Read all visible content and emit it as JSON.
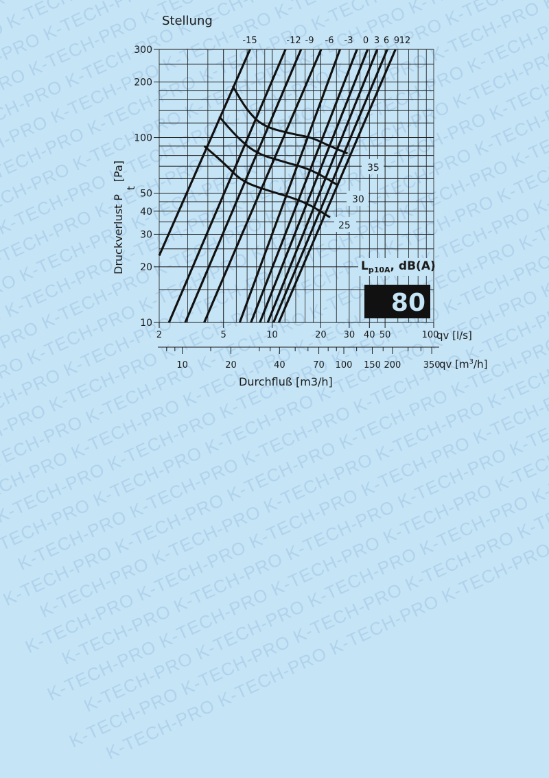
{
  "chart_data": {
    "type": "line",
    "title": "Stellung",
    "xlabel": "Durchfluß [m3/h]",
    "ylabel": "Druckverlust P t [Pa]",
    "x_scale": "log",
    "y_scale": "log",
    "xlim_ls": [
      2,
      100
    ],
    "ylim": [
      10,
      300
    ],
    "grid": true,
    "y_ticks": [
      "10",
      "20",
      "30",
      "40",
      "50",
      "100",
      "200",
      "300"
    ],
    "x_ticks_ls": [
      "2",
      "5",
      "10",
      "20",
      "30",
      "40",
      "50",
      "100"
    ],
    "x_axis_ls_label": "qv [l/s]",
    "x_ticks_m3h": [
      "10",
      "20",
      "40",
      "70",
      "100",
      "150",
      "200",
      "350"
    ],
    "x_axis_m3h_label": "qv [m³/h]",
    "stellung_labels": [
      "-15",
      "-12",
      "-9",
      "-6",
      "-3",
      "0",
      "3",
      "6",
      "9",
      "12"
    ],
    "series": [
      {
        "name": "-15",
        "points": [
          [
            2.0,
            23
          ],
          [
            7.3,
            300
          ]
        ]
      },
      {
        "name": "-12",
        "points": [
          [
            2.3,
            10
          ],
          [
            12.1,
            300
          ]
        ]
      },
      {
        "name": "-9",
        "points": [
          [
            2.9,
            10
          ],
          [
            15.1,
            300
          ]
        ]
      },
      {
        "name": "-6",
        "points": [
          [
            3.8,
            10
          ],
          [
            20.1,
            300
          ]
        ]
      },
      {
        "name": "-3",
        "points": [
          [
            6.3,
            10
          ],
          [
            26.3,
            300
          ]
        ]
      },
      {
        "name": "0",
        "points": [
          [
            7.4,
            10
          ],
          [
            33.5,
            300
          ]
        ]
      },
      {
        "name": "3",
        "points": [
          [
            8.4,
            10
          ],
          [
            39.0,
            300
          ]
        ]
      },
      {
        "name": "6",
        "points": [
          [
            9.4,
            10
          ],
          [
            44.7,
            300
          ]
        ]
      },
      {
        "name": "9",
        "points": [
          [
            10.2,
            10
          ],
          [
            51.6,
            300
          ]
        ]
      },
      {
        "name": "12",
        "points": [
          [
            11.0,
            10
          ],
          [
            58.0,
            300
          ]
        ]
      }
    ],
    "isolines": [
      {
        "name": "35",
        "unit": "dB(A)",
        "points": [
          [
            5.7,
            190
          ],
          [
            7.0,
            140
          ],
          [
            8.8,
            115
          ],
          [
            13.1,
            105
          ],
          [
            17.6,
            100
          ],
          [
            21.5,
            92
          ],
          [
            29.3,
            82
          ]
        ]
      },
      {
        "name": "30",
        "unit": "dB(A)",
        "points": [
          [
            4.7,
            130
          ],
          [
            6.1,
            100
          ],
          [
            8.0,
            82
          ],
          [
            11.8,
            74
          ],
          [
            16.6,
            68
          ],
          [
            21.2,
            61
          ],
          [
            25.7,
            55
          ]
        ]
      },
      {
        "name": "25",
        "unit": "dB(A)",
        "points": [
          [
            3.8,
            90
          ],
          [
            5.1,
            72
          ],
          [
            6.5,
            58
          ],
          [
            9.2,
            52
          ],
          [
            13.6,
            47
          ],
          [
            17.4,
            43
          ],
          [
            22.8,
            37
          ]
        ]
      }
    ],
    "annotations": {
      "noise_label": "Lp10A, dB(A)",
      "noise_value": "80"
    }
  },
  "labels": {
    "stellung": "Stellung",
    "y_axis": "Druckverlust P",
    "y_axis_sub": "t",
    "y_axis_unit": "[Pa]",
    "x_axis": "Durchfluß  [m3/h]",
    "qv_ls": "qv [l/s]",
    "qv_m3h": "qv [m",
    "qv_m3h_sup": "3",
    "qv_m3h_end": "/h]",
    "iso_35": "35",
    "iso_30": "30",
    "iso_25": "25",
    "noise_L": "L",
    "noise_sub": "p10A",
    "noise_rest": ", dB(A)",
    "noise_value": "80",
    "watermark": "K-TECH-PRO"
  },
  "colors": {
    "background": "#c5e4f5",
    "watermark": "#a9cdea",
    "ink": "#1a1a1a",
    "badge_text": "#c5e4f5"
  }
}
